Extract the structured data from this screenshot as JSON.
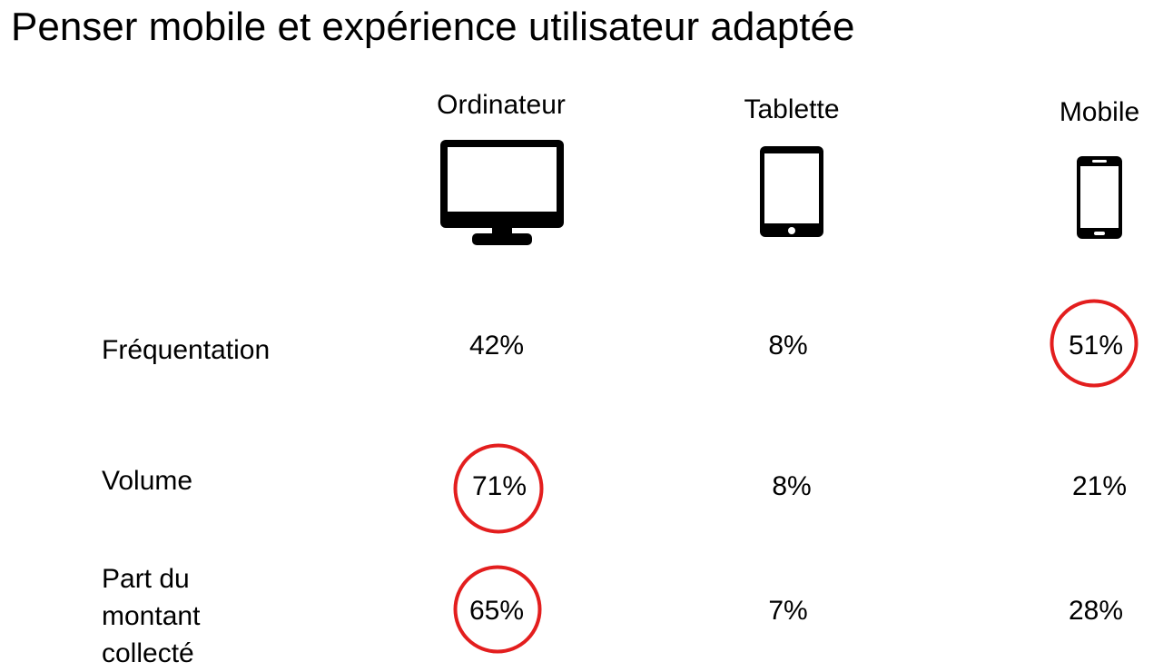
{
  "title": "Penser mobile et expérience utilisateur adaptée",
  "columns": [
    {
      "label": "Ordinateur",
      "icon": "desktop-computer-icon"
    },
    {
      "label": "Tablette",
      "icon": "tablet-icon"
    },
    {
      "label": "Mobile",
      "icon": "smartphone-icon"
    }
  ],
  "rows": [
    {
      "label": "Fréquentation",
      "values": [
        "42%",
        "8%",
        "51%"
      ],
      "circled": [
        false,
        false,
        true
      ]
    },
    {
      "label": "Volume",
      "values": [
        "71%",
        "8%",
        "21%"
      ],
      "circled": [
        true,
        false,
        false
      ]
    },
    {
      "label": "Part du\nmontant\ncollecté",
      "values": [
        "65%",
        "7%",
        "28%"
      ],
      "circled": [
        true,
        false,
        false
      ]
    }
  ],
  "colors": {
    "highlight_circle": "#e31e1e",
    "text": "#000000",
    "background": "#ffffff"
  }
}
